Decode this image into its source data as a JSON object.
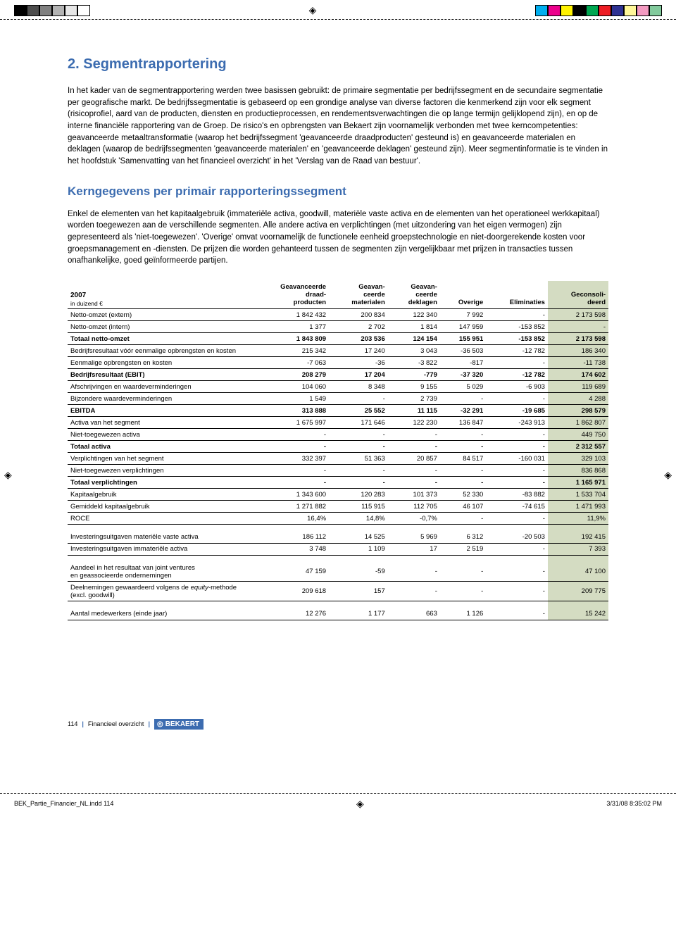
{
  "print_marks": {
    "left_swatches": [
      "#000000",
      "#4d4d4d",
      "#808080",
      "#b3b3b3",
      "#e6e6e6",
      "#ffffff"
    ],
    "right_swatches": [
      "#00aeef",
      "#ec008c",
      "#fff200",
      "#000000",
      "#00a651",
      "#ed1c24",
      "#2e3192",
      "#fff799",
      "#f49ac1",
      "#82ca9c"
    ],
    "register": "◈",
    "file_label": "BEK_Partie_Financier_NL.indd   114",
    "timestamp": "3/31/08   8:35:02 PM"
  },
  "heading1": "2. Segmentrapportering",
  "para1": "In het kader van de segmentrapportering werden twee basissen gebruikt: de primaire segmentatie per bedrijfssegment en de secundaire segmentatie per geografische markt. De bedrijfssegmentatie is gebaseerd op een grondige analyse van diverse factoren die kenmerkend zijn voor elk segment (risicoprofiel, aard van de producten, diensten en productieprocessen, en rendementsverwachtingen die op lange termijn gelijklopend zijn), en op de interne financiële rapportering van de Groep. De risico's en opbrengsten van Bekaert zijn voornamelijk verbonden met twee kerncompetenties: geavanceerde metaaltransformatie (waarop het bedrijfssegment 'geavanceerde draadproducten' gesteund is) en geavanceerde materialen en deklagen (waarop de bedrijfssegmenten 'geavanceerde materialen' en 'geavanceerde deklagen' gesteund zijn). Meer segmentinformatie is te vinden in het hoofdstuk 'Samenvatting van het financieel overzicht' in het 'Verslag van de Raad van bestuur'.",
  "heading2": "Kerngegevens per primair rapporteringssegment",
  "para2": "Enkel de elementen van het kapitaalgebruik (immateriële activa, goodwill, materiële vaste activa en de elementen van het operationeel werkkapitaal) worden toegewezen aan de verschillende segmenten. Alle andere activa en verplichtingen (met uitzondering van het eigen vermogen) zijn gepresenteerd als 'niet-toegewezen'. 'Overige' omvat voornamelijk de functionele eenheid groepstechnologie en niet-doorgerekende kosten voor groepsmanagement en -diensten. De prijzen die worden gehanteerd tussen de segmenten zijn vergelijkbaar met prijzen in transacties tussen onafhankelijke, goed geïnformeerde partijen.",
  "table": {
    "year": "2007",
    "unit_label": "in duizend €",
    "columns": [
      "Geavanceerde\ndraad-\nproducten",
      "Geavan-\nceerde\nmaterialen",
      "Geavan-\nceerde\ndeklagen",
      "Overige",
      "Eliminaties",
      "Geconsoli-\ndeerd"
    ],
    "rows": [
      {
        "label": "Netto-omzet (extern)",
        "v": [
          "1 842 432",
          "200 834",
          "122 340",
          "7 992",
          "-",
          "2 173 598"
        ]
      },
      {
        "label": "Netto-omzet (intern)",
        "v": [
          "1 377",
          "2 702",
          "1 814",
          "147 959",
          "-153 852",
          "-"
        ]
      },
      {
        "label": "Totaal netto-omzet",
        "v": [
          "1 843 809",
          "203 536",
          "124 154",
          "155 951",
          "-153 852",
          "2 173 598"
        ],
        "bold": true
      },
      {
        "label": "Bedrijfsresultaat vóór eenmalige opbrengsten en kosten",
        "v": [
          "215 342",
          "17 240",
          "3 043",
          "-36 503",
          "-12 782",
          "186 340"
        ]
      },
      {
        "label": "Eenmalige opbrengsten en kosten",
        "v": [
          "-7 063",
          "-36",
          "-3 822",
          "-817",
          "-",
          "-11 738"
        ]
      },
      {
        "label": "Bedrijfsresultaat (EBIT)",
        "v": [
          "208 279",
          "17 204",
          "-779",
          "-37 320",
          "-12 782",
          "174 602"
        ],
        "bold": true
      },
      {
        "label": "Afschrijvingen en waardeverminderingen",
        "v": [
          "104 060",
          "8 348",
          "9 155",
          "5 029",
          "-6 903",
          "119 689"
        ]
      },
      {
        "label": "Bijzondere waardeverminderingen",
        "v": [
          "1 549",
          "-",
          "2 739",
          "-",
          "-",
          "4 288"
        ]
      },
      {
        "label": "EBITDA",
        "v": [
          "313 888",
          "25 552",
          "11 115",
          "-32 291",
          "-19 685",
          "298 579"
        ],
        "bold": true
      },
      {
        "label": "Activa van het segment",
        "v": [
          "1 675 997",
          "171 646",
          "122 230",
          "136 847",
          "-243 913",
          "1 862 807"
        ]
      },
      {
        "label": "Niet-toegewezen activa",
        "v": [
          "-",
          "-",
          "-",
          "-",
          "-",
          "449 750"
        ]
      },
      {
        "label": "Totaal activa",
        "v": [
          "-",
          "-",
          "-",
          "-",
          "-",
          "2 312 557"
        ],
        "bold": true
      },
      {
        "label": "Verplichtingen van het segment",
        "v": [
          "332 397",
          "51 363",
          "20 857",
          "84 517",
          "-160 031",
          "329 103"
        ]
      },
      {
        "label": "Niet-toegewezen verplichtingen",
        "v": [
          "-",
          "-",
          "-",
          "-",
          "-",
          "836 868"
        ]
      },
      {
        "label": "Totaal verplichtingen",
        "v": [
          "-",
          "-",
          "-",
          "-",
          "-",
          "1 165 971"
        ],
        "bold": true
      },
      {
        "label": "Kapitaalgebruik",
        "v": [
          "1 343 600",
          "120 283",
          "101 373",
          "52 330",
          "-83 882",
          "1 533 704"
        ]
      },
      {
        "label": "Gemiddeld kapitaalgebruik",
        "v": [
          "1 271 882",
          "115 915",
          "112 705",
          "46 107",
          "-74 615",
          "1 471 993"
        ]
      },
      {
        "label": "ROCE",
        "v": [
          "16,4%",
          "14,8%",
          "-0,7%",
          "-",
          "-",
          "11,9%"
        ]
      },
      {
        "label": "",
        "v": [
          "",
          "",
          "",
          "",
          "",
          ""
        ]
      },
      {
        "label": "Investeringsuitgaven materiële vaste activa",
        "v": [
          "186 112",
          "14 525",
          "5 969",
          "6 312",
          "-20 503",
          "192 415"
        ]
      },
      {
        "label": "Investeringsuitgaven immateriële activa",
        "v": [
          "3 748",
          "1 109",
          "17",
          "2 519",
          "-",
          "7 393"
        ]
      },
      {
        "label": "",
        "v": [
          "",
          "",
          "",
          "",
          "",
          ""
        ]
      },
      {
        "label": "Aandeel in het resultaat van joint ventures\nen geassocieerde ondernemingen",
        "v": [
          "47 159",
          "-59",
          "-",
          "-",
          "-",
          "47 100"
        ]
      },
      {
        "label": "Deelnemingen gewaardeerd volgens de equity-methode\n(excl. goodwill)",
        "v": [
          "209 618",
          "157",
          "-",
          "-",
          "-",
          "209 775"
        ]
      },
      {
        "label": "",
        "v": [
          "",
          "",
          "",
          "",
          "",
          ""
        ]
      },
      {
        "label": "Aantal medewerkers (einde jaar)",
        "v": [
          "12 276",
          "1 177",
          "663",
          "1 126",
          "-",
          "15 242"
        ]
      }
    ]
  },
  "footer": {
    "page_no": "114",
    "section": "Financieel overzicht",
    "brand": "BEKAERT"
  }
}
